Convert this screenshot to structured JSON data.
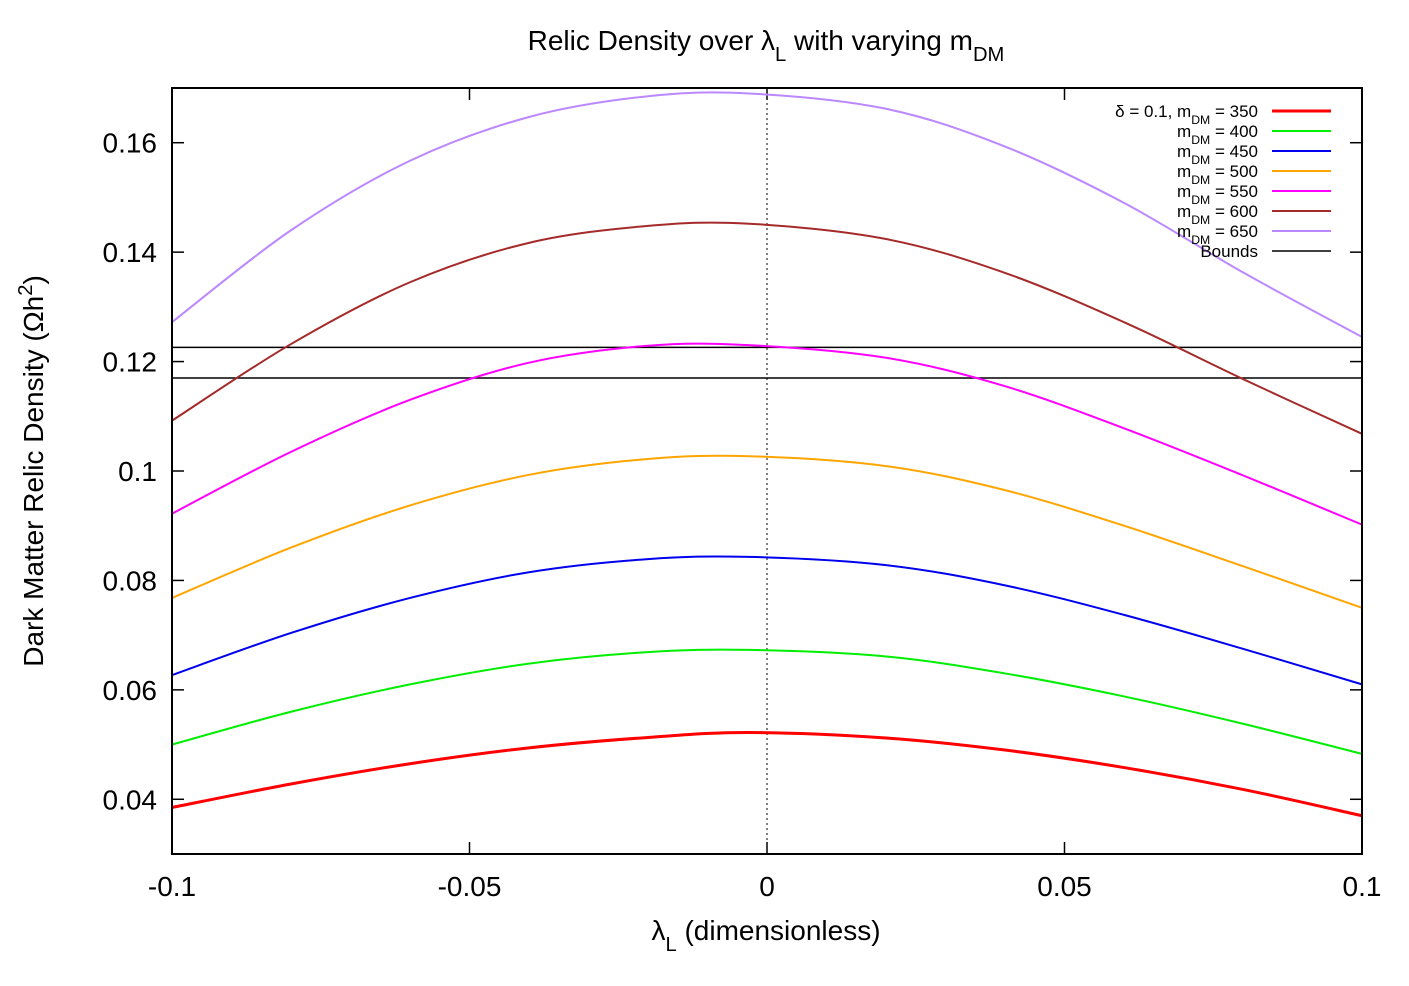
{
  "chart_data": {
    "type": "line",
    "title": {
      "prefix": "Relic Density over ",
      "lambda": "λ",
      "lambda_sub": "L",
      "mid": " with varying m",
      "m_sub": "DM"
    },
    "xlabel": {
      "lambda": "λ",
      "sub": "L",
      "rest": " (dimensionless)"
    },
    "ylabel": {
      "text": "Dark Matter Relic Density (Ωh",
      "sup": "2",
      "close": ")"
    },
    "xlim": [
      -0.1,
      0.1
    ],
    "ylim": [
      0.03,
      0.17
    ],
    "xticks": [
      {
        "value": -0.1,
        "label": "-0.1"
      },
      {
        "value": -0.05,
        "label": "-0.05"
      },
      {
        "value": 0,
        "label": "0"
      },
      {
        "value": 0.05,
        "label": "0.05"
      },
      {
        "value": 0.1,
        "label": "0.1"
      }
    ],
    "yticks": [
      {
        "value": 0.04,
        "label": "0.04"
      },
      {
        "value": 0.06,
        "label": "0.06"
      },
      {
        "value": 0.08,
        "label": "0.08"
      },
      {
        "value": 0.1,
        "label": "0.1"
      },
      {
        "value": 0.12,
        "label": "0.12"
      },
      {
        "value": 0.14,
        "label": "0.14"
      },
      {
        "value": 0.16,
        "label": "0.16"
      }
    ],
    "x": [
      -0.1,
      -0.08,
      -0.06,
      -0.04,
      -0.02,
      -0.003,
      0.02,
      0.04,
      0.06,
      0.08,
      0.1
    ],
    "series": [
      {
        "name": "m_DM = 350",
        "label_prefix": "δ = 0.1, m",
        "label_sub": "DM",
        "label_suffix": " = 350",
        "color": "#ff0000",
        "width": 3,
        "values": [
          0.0385,
          0.0428,
          0.0465,
          0.0494,
          0.0513,
          0.0522,
          0.0512,
          0.049,
          0.0458,
          0.0418,
          0.037
        ]
      },
      {
        "name": "m_DM = 400",
        "label_prefix": "m",
        "label_sub": "DM",
        "label_suffix": " = 400",
        "color": "#00ee00",
        "width": 2,
        "values": [
          0.05,
          0.056,
          0.061,
          0.0648,
          0.0669,
          0.0673,
          0.0661,
          0.063,
          0.0588,
          0.0538,
          0.0483
        ]
      },
      {
        "name": "m_DM = 450",
        "label_prefix": "m",
        "label_sub": "DM",
        "label_suffix": " = 450",
        "color": "#0000ee",
        "width": 2,
        "values": [
          0.0627,
          0.0704,
          0.0768,
          0.0815,
          0.0839,
          0.0843,
          0.0828,
          0.0791,
          0.0737,
          0.0675,
          0.061
        ]
      },
      {
        "name": "m_DM = 500",
        "label_prefix": "m",
        "label_sub": "DM",
        "label_suffix": " = 500",
        "color": "#ffa500",
        "width": 2,
        "values": [
          0.0768,
          0.086,
          0.0937,
          0.0993,
          0.1022,
          0.1027,
          0.1009,
          0.0965,
          0.09,
          0.0826,
          0.075
        ]
      },
      {
        "name": "m_DM = 550",
        "label_prefix": "m",
        "label_sub": "DM",
        "label_suffix": " = 550",
        "color": "#ff00ff",
        "width": 2,
        "values": [
          0.0922,
          0.1035,
          0.113,
          0.1198,
          0.1229,
          0.123,
          0.1207,
          0.1155,
          0.1078,
          0.0992,
          0.0902
        ]
      },
      {
        "name": "m_DM = 600",
        "label_prefix": "m",
        "label_sub": "DM",
        "label_suffix": " = 600",
        "color": "#a52a2a",
        "width": 2,
        "values": [
          0.1092,
          0.1232,
          0.1345,
          0.1417,
          0.1448,
          0.1452,
          0.1424,
          0.1362,
          0.1272,
          0.1168,
          0.1068
        ]
      },
      {
        "name": "m_DM = 650",
        "label_prefix": "m",
        "label_sub": "DM",
        "label_suffix": " = 650",
        "color": "#bb88ff",
        "width": 2,
        "values": [
          0.1272,
          0.144,
          0.1567,
          0.1647,
          0.1685,
          0.169,
          0.1662,
          0.1593,
          0.149,
          0.1363,
          0.1245
        ]
      }
    ],
    "bounds": {
      "label": "Bounds",
      "color": "#000000",
      "values": [
        0.117,
        0.1226
      ]
    },
    "zero_line": {
      "x": 0,
      "style": "dotted"
    },
    "legend_position": "top-right"
  }
}
